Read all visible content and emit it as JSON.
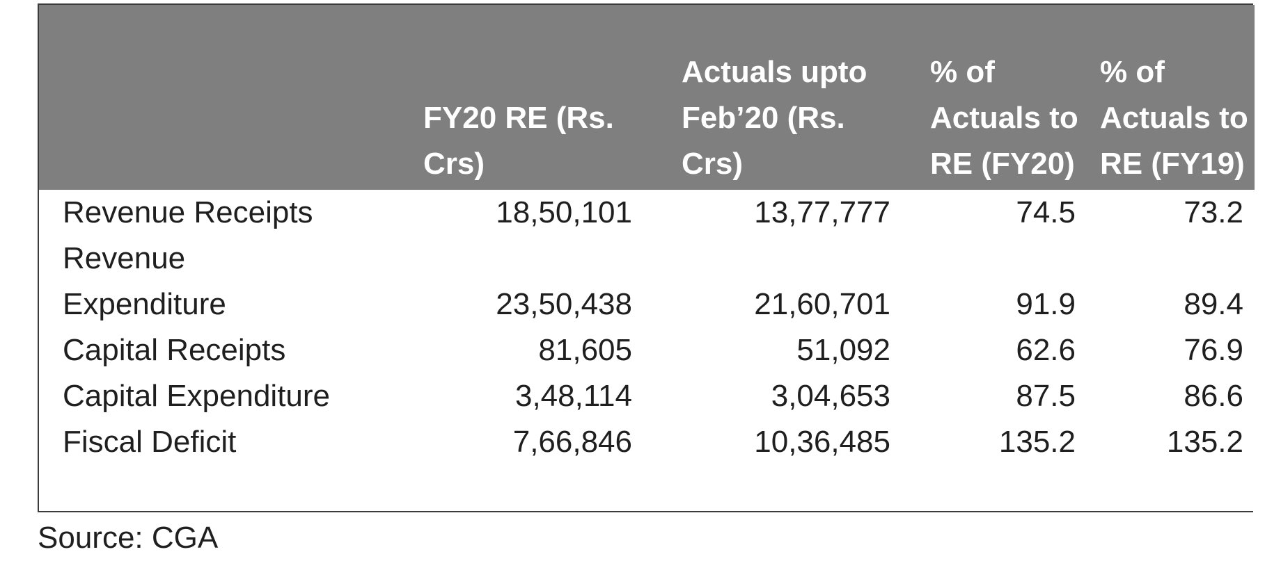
{
  "table": {
    "headers": [
      "",
      "FY20 RE (Rs. Crs)",
      "Actuals upto Feb’20 (Rs. Crs)",
      "% of Actuals to RE (FY20)",
      "% of Actuals to RE (FY19)"
    ],
    "rows": [
      [
        "Revenue Receipts",
        "18,50,101",
        "13,77,777",
        "74.5",
        "73.2"
      ],
      [
        "Revenue Expenditure",
        "23,50,438",
        "21,60,701",
        "91.9",
        "89.4"
      ],
      [
        "Capital Receipts",
        "81,605",
        "51,092",
        "62.6",
        "76.9"
      ],
      [
        "Capital Expenditure",
        "3,48,114",
        "3,04,653",
        "87.5",
        "86.6"
      ],
      [
        "Fiscal Deficit",
        "7,66,846",
        "10,36,485",
        "135.2",
        "135.2"
      ]
    ]
  },
  "source": "Source: CGA",
  "colors": {
    "header_bg": "#7f7f7f",
    "header_text": "#ffffff",
    "body_text": "#1f1f1f",
    "border": "#3a3a3a"
  }
}
